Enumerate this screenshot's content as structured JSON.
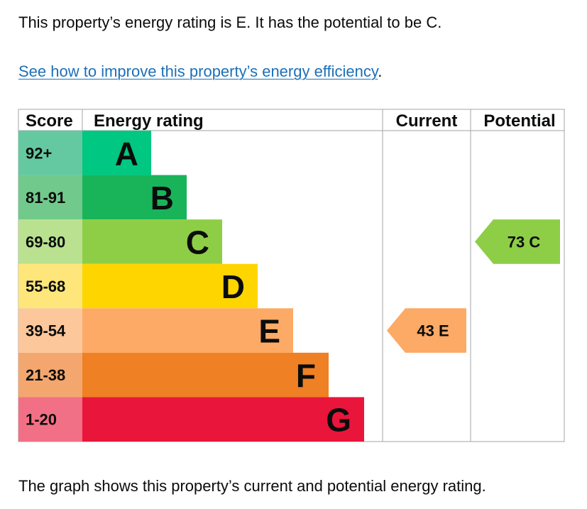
{
  "summary_text": "This property’s energy rating is E. It has the potential to be C.",
  "improve_link": {
    "label": "See how to improve this property’s energy efficiency",
    "trailing": "."
  },
  "caption_text": "The graph shows this property’s current and potential energy rating.",
  "chart_data": {
    "type": "table",
    "headers": {
      "score": "Score",
      "rating": "Energy rating",
      "current": "Current",
      "potential": "Potential"
    },
    "bands": [
      {
        "letter": "A",
        "score_range": "92+",
        "color": "#00c781",
        "score_color": "#64c9a0"
      },
      {
        "letter": "B",
        "score_range": "81-91",
        "color": "#19b459",
        "score_color": "#72c98c"
      },
      {
        "letter": "C",
        "score_range": "69-80",
        "color": "#8dce46",
        "score_color": "#b9e18f"
      },
      {
        "letter": "D",
        "score_range": "55-68",
        "color": "#ffd500",
        "score_color": "#fee67a"
      },
      {
        "letter": "E",
        "score_range": "39-54",
        "color": "#fcaa65",
        "score_color": "#fcc79b"
      },
      {
        "letter": "F",
        "score_range": "21-38",
        "color": "#ef8023",
        "score_color": "#f3a76e"
      },
      {
        "letter": "G",
        "score_range": "1-20",
        "color": "#e9153b",
        "score_color": "#f27085"
      }
    ],
    "current": {
      "value": 43,
      "letter": "E",
      "label": "43  E",
      "color": "#fcaa65"
    },
    "potential": {
      "value": 73,
      "letter": "C",
      "label": "73  C",
      "color": "#8dce46"
    },
    "grid_color": "#b1b4b6"
  }
}
